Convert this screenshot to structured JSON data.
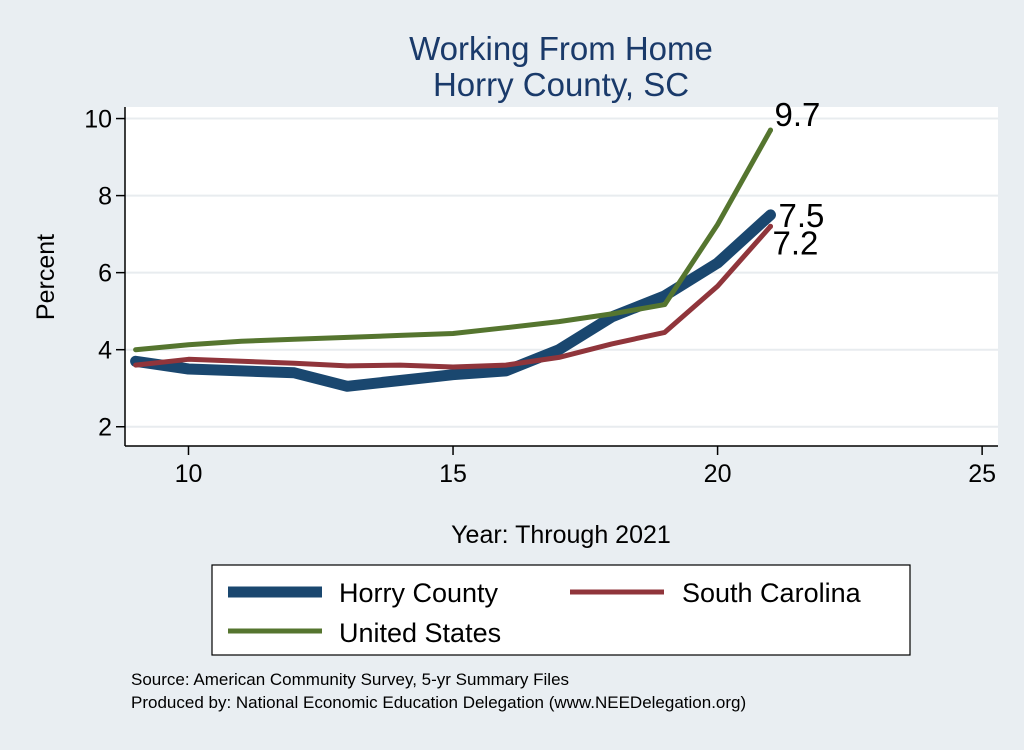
{
  "chart_data": {
    "type": "line",
    "title": "Working From Home",
    "subtitle": "Horry County, SC",
    "xlabel": "Year: Through 2021",
    "ylabel": "Percent",
    "xlim": [
      8.8,
      25.3
    ],
    "ylim": [
      1.5,
      10.3
    ],
    "xticks": [
      10,
      15,
      20,
      25
    ],
    "yticks": [
      2,
      4,
      6,
      8,
      10
    ],
    "grid": true,
    "legend_position": "bottom",
    "series": [
      {
        "name": "Horry County",
        "color": "#1a476f",
        "x": [
          9,
          10,
          11,
          12,
          13,
          14,
          15,
          16,
          17,
          18,
          19,
          20,
          21
        ],
        "values": [
          3.7,
          3.5,
          3.45,
          3.4,
          3.05,
          3.2,
          3.35,
          3.45,
          4.0,
          4.85,
          5.4,
          6.25,
          7.5
        ],
        "end_label": "7.5"
      },
      {
        "name": "South Carolina",
        "color": "#90353b",
        "x": [
          9,
          10,
          11,
          12,
          13,
          14,
          15,
          16,
          17,
          18,
          19,
          20,
          21
        ],
        "values": [
          3.6,
          3.75,
          3.7,
          3.65,
          3.58,
          3.6,
          3.55,
          3.6,
          3.8,
          4.15,
          4.45,
          5.65,
          7.2
        ],
        "end_label": "7.2"
      },
      {
        "name": "United States",
        "color": "#55752f",
        "x": [
          9,
          10,
          11,
          12,
          13,
          14,
          15,
          16,
          17,
          18,
          19,
          20,
          21
        ],
        "values": [
          4.0,
          4.13,
          4.22,
          4.27,
          4.32,
          4.37,
          4.42,
          4.57,
          4.73,
          4.93,
          5.17,
          7.25,
          9.7
        ],
        "end_label": "9.7"
      }
    ],
    "notes": [
      "Source: American Community Survey, 5-yr Summary Files",
      "Produced by: National Economic Education Delegation (www.NEEDelegation.org)"
    ]
  }
}
